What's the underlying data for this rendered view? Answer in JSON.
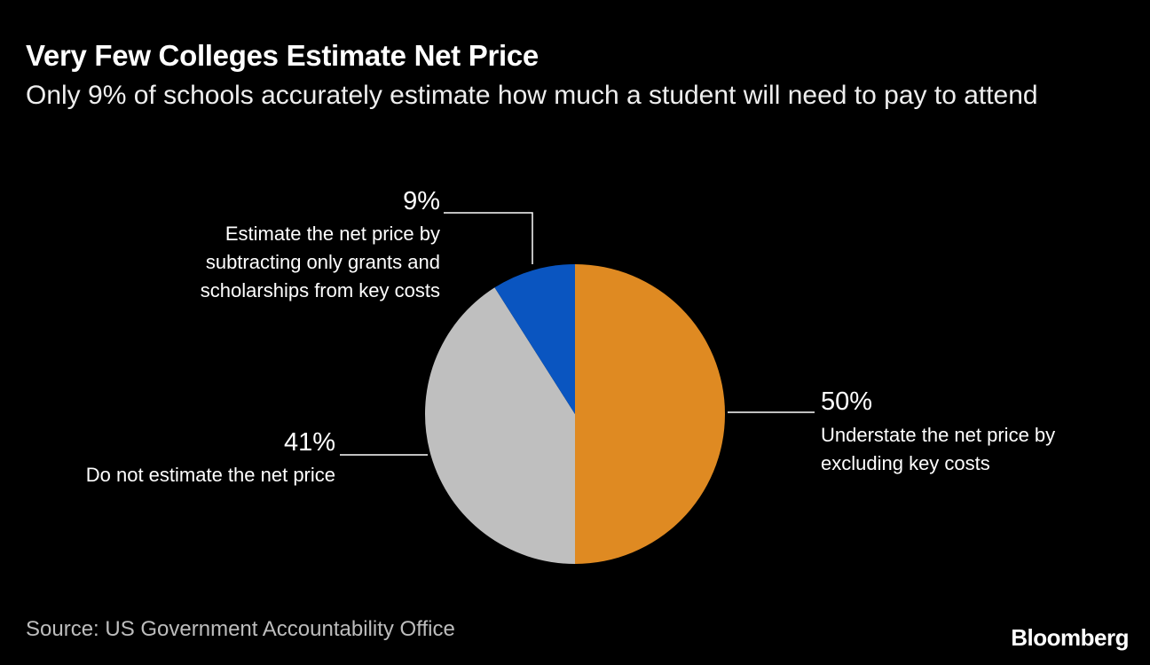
{
  "chart_data": {
    "type": "pie",
    "title": "Very Few Colleges Estimate Net Price",
    "subtitle": "Only 9% of schools accurately estimate how much a student will need to pay to attend",
    "slices": [
      {
        "label_lines": [
          "Understate the net price by",
          "excluding key costs"
        ],
        "value": 50,
        "value_label": "50%",
        "color": "#df8a22"
      },
      {
        "label_lines": [
          "Do not estimate the net price"
        ],
        "value": 41,
        "value_label": "41%",
        "color": "#bfbfbf"
      },
      {
        "label_lines": [
          "Estimate the net price by",
          "subtracting only grants and",
          "scholarships from key costs"
        ],
        "value": 9,
        "value_label": "9%",
        "color": "#0a55c0"
      }
    ],
    "source": "Source: US Government Accountability Office"
  },
  "branding": {
    "logo": "Bloomberg"
  }
}
